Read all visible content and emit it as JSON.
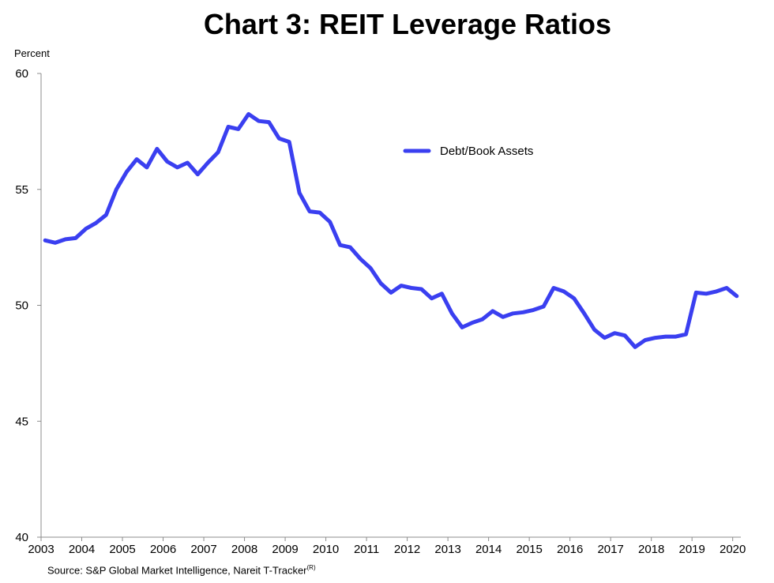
{
  "chart_data": {
    "type": "line",
    "title": "Chart 3: REIT Leverage Ratios",
    "ylabel": "Percent",
    "xlabel": "",
    "ylim": [
      40,
      60
    ],
    "xlim": [
      2003,
      2020.2
    ],
    "y_ticks": [
      40,
      45,
      50,
      55,
      60
    ],
    "x_ticks": [
      2003,
      2004,
      2005,
      2006,
      2007,
      2008,
      2009,
      2010,
      2011,
      2012,
      2013,
      2014,
      2015,
      2016,
      2017,
      2018,
      2019,
      2020
    ],
    "grid": false,
    "legend_position": "top-center",
    "series": [
      {
        "name": "Debt/Book Assets",
        "color": "#3a3ff0",
        "points": [
          [
            2003.1,
            52.8
          ],
          [
            2003.35,
            52.7
          ],
          [
            2003.6,
            52.85
          ],
          [
            2003.85,
            52.9
          ],
          [
            2004.1,
            53.3
          ],
          [
            2004.35,
            53.55
          ],
          [
            2004.6,
            53.9
          ],
          [
            2004.85,
            55.0
          ],
          [
            2005.1,
            55.75
          ],
          [
            2005.35,
            56.3
          ],
          [
            2005.6,
            55.95
          ],
          [
            2005.85,
            56.75
          ],
          [
            2006.1,
            56.2
          ],
          [
            2006.35,
            55.95
          ],
          [
            2006.6,
            56.15
          ],
          [
            2006.85,
            55.65
          ],
          [
            2007.1,
            56.15
          ],
          [
            2007.35,
            56.6
          ],
          [
            2007.6,
            57.7
          ],
          [
            2007.85,
            57.6
          ],
          [
            2008.1,
            58.25
          ],
          [
            2008.35,
            57.95
          ],
          [
            2008.6,
            57.9
          ],
          [
            2008.85,
            57.2
          ],
          [
            2009.1,
            57.05
          ],
          [
            2009.35,
            54.85
          ],
          [
            2009.6,
            54.05
          ],
          [
            2009.85,
            54.0
          ],
          [
            2010.1,
            53.6
          ],
          [
            2010.35,
            52.6
          ],
          [
            2010.6,
            52.5
          ],
          [
            2010.85,
            52.0
          ],
          [
            2011.1,
            51.6
          ],
          [
            2011.35,
            50.95
          ],
          [
            2011.6,
            50.55
          ],
          [
            2011.85,
            50.85
          ],
          [
            2012.1,
            50.75
          ],
          [
            2012.35,
            50.7
          ],
          [
            2012.6,
            50.3
          ],
          [
            2012.85,
            50.5
          ],
          [
            2013.1,
            49.65
          ],
          [
            2013.35,
            49.05
          ],
          [
            2013.6,
            49.25
          ],
          [
            2013.85,
            49.4
          ],
          [
            2014.1,
            49.75
          ],
          [
            2014.35,
            49.5
          ],
          [
            2014.6,
            49.65
          ],
          [
            2014.85,
            49.7
          ],
          [
            2015.1,
            49.8
          ],
          [
            2015.35,
            49.95
          ],
          [
            2015.6,
            50.75
          ],
          [
            2015.85,
            50.6
          ],
          [
            2016.1,
            50.3
          ],
          [
            2016.35,
            49.65
          ],
          [
            2016.6,
            48.95
          ],
          [
            2016.85,
            48.6
          ],
          [
            2017.1,
            48.8
          ],
          [
            2017.35,
            48.7
          ],
          [
            2017.6,
            48.2
          ],
          [
            2017.85,
            48.5
          ],
          [
            2018.1,
            48.6
          ],
          [
            2018.35,
            48.65
          ],
          [
            2018.6,
            48.65
          ],
          [
            2018.85,
            48.75
          ],
          [
            2019.1,
            50.55
          ],
          [
            2019.35,
            50.5
          ],
          [
            2019.6,
            50.6
          ],
          [
            2019.85,
            50.75
          ],
          [
            2020.1,
            50.4
          ]
        ]
      }
    ]
  },
  "source": {
    "text": "Source: S&P Global Market Intelligence, Nareit T-Tracker",
    "superscript": "(R)"
  }
}
